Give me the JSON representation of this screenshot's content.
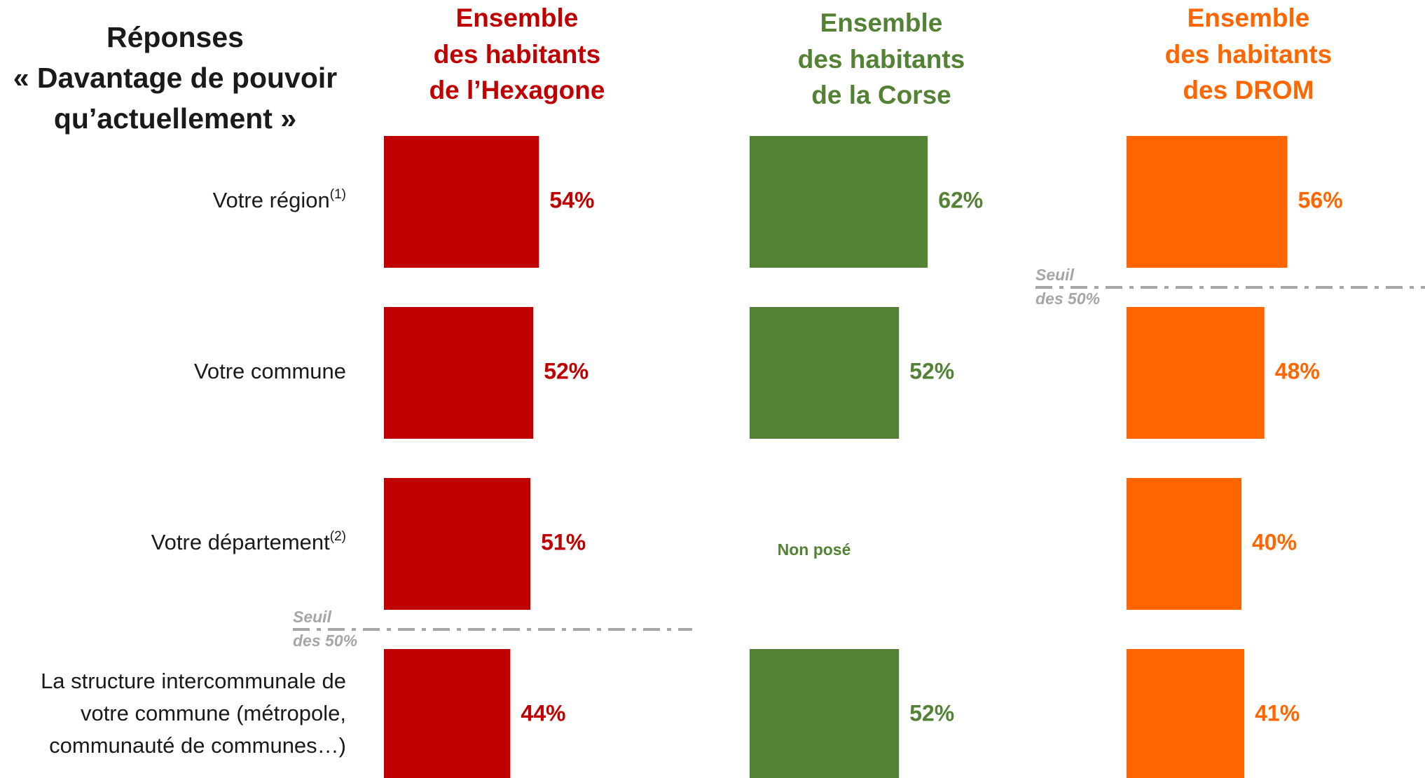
{
  "title_lines": [
    "Réponses",
    "« Davantage de pouvoir",
    "qu’actuellement »"
  ],
  "chart_data": {
    "type": "bar",
    "orientation": "horizontal",
    "unit": "%",
    "categories": [
      {
        "label": [
          "Votre région"
        ],
        "sup": "(1)"
      },
      {
        "label": [
          "Votre commune"
        ],
        "sup": ""
      },
      {
        "label": [
          "Votre département"
        ],
        "sup": "(2)"
      },
      {
        "label": [
          "La structure intercommunale de",
          "votre commune (métropole,",
          "communauté de communes…)"
        ],
        "sup": ""
      }
    ],
    "series": [
      {
        "name": [
          "Ensemble",
          "des habitants",
          "de l’Hexagone"
        ],
        "color": "#c00000",
        "values": [
          54,
          52,
          51,
          44
        ]
      },
      {
        "name": [
          "Ensemble",
          "des habitants",
          "de la Corse"
        ],
        "color": "#548235",
        "values": [
          62,
          52,
          null,
          52
        ]
      },
      {
        "name": [
          "Ensemble",
          "des habitants",
          "des DROM"
        ],
        "color": "#ff6600",
        "values": [
          56,
          48,
          40,
          41
        ]
      }
    ],
    "missing_label": "Non posé",
    "threshold": {
      "value": 50,
      "label": [
        "Seuil",
        "des 50%"
      ],
      "color": "#a6a6a6"
    }
  }
}
